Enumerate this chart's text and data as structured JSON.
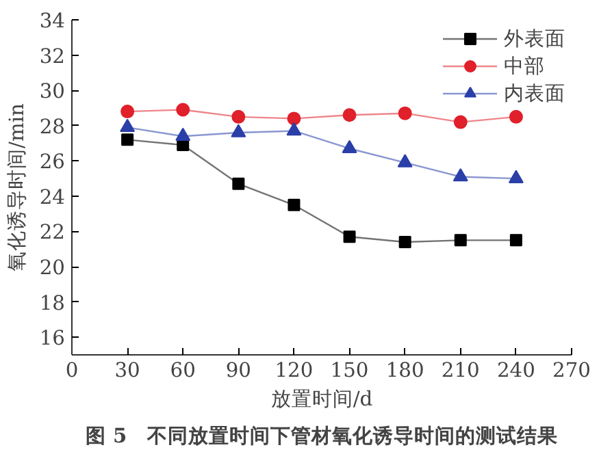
{
  "chart_data": {
    "type": "line",
    "xlabel": "放置时间/d",
    "ylabel": "氧化诱导时间/min",
    "x": [
      30,
      60,
      90,
      120,
      150,
      180,
      210,
      240
    ],
    "series": [
      {
        "name": "外表面",
        "color": "#000000",
        "marker": "square",
        "values": [
          27.2,
          26.9,
          24.7,
          23.5,
          21.7,
          21.4,
          21.5,
          21.5
        ]
      },
      {
        "name": "中部",
        "color": "#e0202a",
        "marker": "circle",
        "values": [
          28.8,
          28.9,
          28.5,
          28.4,
          28.6,
          28.7,
          28.2,
          28.5
        ]
      },
      {
        "name": "内表面",
        "color": "#2a3fa8",
        "marker": "triangle",
        "values": [
          27.9,
          27.4,
          27.6,
          27.7,
          26.7,
          25.9,
          25.1,
          25.0
        ]
      }
    ],
    "xlim": [
      0,
      270
    ],
    "xticks": [
      0,
      30,
      60,
      90,
      120,
      150,
      180,
      210,
      240,
      270
    ],
    "ylim": [
      15,
      34
    ],
    "yticks": [
      16,
      18,
      20,
      22,
      24,
      26,
      28,
      30,
      32,
      34
    ],
    "grid": false,
    "legend": "top right",
    "line_style": "solid",
    "annotations": [
      "图 5　不同放置时间下管材氧化诱导时间的测试结果"
    ]
  }
}
